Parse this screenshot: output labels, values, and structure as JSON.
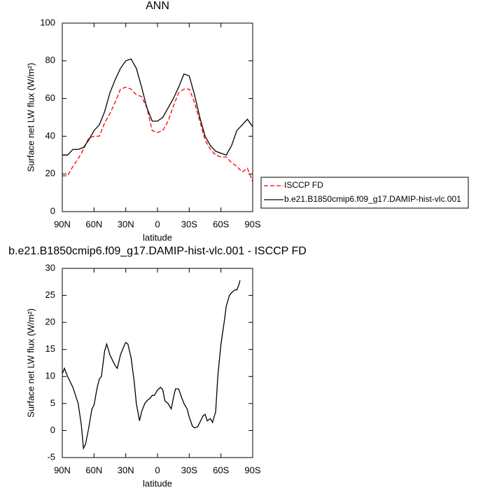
{
  "chart_data": [
    {
      "type": "line",
      "title": "ANN",
      "x_label": "latitude",
      "y_label": "Surface net LW flux (W/m²)",
      "xlim": [
        90,
        -90
      ],
      "xticks": [
        {
          "value": 90,
          "label": "90N"
        },
        {
          "value": 60,
          "label": "60N"
        },
        {
          "value": 30,
          "label": "30N"
        },
        0,
        {
          "value": -30,
          "label": "30S"
        },
        {
          "value": -60,
          "label": "60S"
        },
        {
          "value": -90,
          "label": "90S"
        }
      ],
      "ylim": [
        0,
        100
      ],
      "yticks": [
        0,
        20,
        40,
        60,
        80,
        100
      ],
      "x": [
        90,
        85,
        80,
        75,
        70,
        65,
        60,
        55,
        50,
        45,
        40,
        35,
        30,
        25,
        20,
        15,
        10,
        5,
        0,
        -5,
        -10,
        -15,
        -20,
        -25,
        -30,
        -35,
        -40,
        -45,
        -50,
        -55,
        -60,
        -65,
        -70,
        -75,
        -80,
        -85,
        -90
      ],
      "series": [
        {
          "name": "ISCCP FD",
          "color": "#ff0000",
          "line_style": "dashed",
          "values": [
            19,
            19,
            24,
            28,
            33,
            39,
            40,
            40,
            47,
            52,
            58,
            65,
            66,
            65,
            62,
            61,
            55,
            43,
            42,
            43,
            48,
            56,
            63,
            65,
            65,
            58,
            48,
            38,
            33,
            30,
            29,
            29,
            26,
            24,
            21,
            23,
            16
          ]
        },
        {
          "name": "b.e21.B1850cmip6.f09_g17.DAMIP-hist-vlc.001",
          "color": "#000000",
          "line_style": "solid",
          "values": [
            30,
            30,
            33,
            33,
            34,
            38,
            43,
            46,
            53,
            63,
            70,
            76,
            80,
            81,
            76,
            66,
            55,
            48,
            48,
            50,
            55,
            60,
            66,
            73,
            72,
            62,
            50,
            40,
            35,
            32,
            31,
            30,
            35,
            43,
            46,
            49,
            45
          ]
        }
      ]
    },
    {
      "type": "line",
      "title": "b.e21.B1850cmip6.f09_g17.DAMIP-hist-vlc.001 - ISCCP FD",
      "x_label": "latitude",
      "y_label": "Surface net LW flux (W/m²)",
      "xlim": [
        90,
        -90
      ],
      "xticks": [
        {
          "value": 90,
          "label": "90N"
        },
        {
          "value": 60,
          "label": "60N"
        },
        {
          "value": 30,
          "label": "30N"
        },
        0,
        {
          "value": -30,
          "label": "30S"
        },
        {
          "value": -60,
          "label": "60S"
        },
        {
          "value": -90,
          "label": "90S"
        }
      ],
      "ylim": [
        -5,
        30
      ],
      "yticks": [
        -5,
        0,
        5,
        10,
        15,
        20,
        25,
        30
      ],
      "x": [
        90,
        88,
        85,
        80,
        75,
        72,
        70,
        68,
        65,
        62,
        60,
        57,
        55,
        53,
        50,
        48,
        45,
        40,
        38,
        35,
        32,
        30,
        28,
        25,
        22,
        20,
        17,
        15,
        12,
        10,
        7,
        5,
        3,
        0,
        -3,
        -5,
        -7,
        -10,
        -13,
        -15,
        -17,
        -20,
        -23,
        -25,
        -28,
        -30,
        -33,
        -35,
        -38,
        -40,
        -43,
        -45,
        -47,
        -50,
        -52,
        -55,
        -57,
        -60,
        -63,
        -65,
        -68,
        -70,
        -73,
        -75,
        -77,
        -78
      ],
      "series": [
        {
          "color": "#000000",
          "line_style": "solid",
          "values": [
            10.5,
            11.5,
            10,
            8,
            5,
            1,
            -3.3,
            -2.5,
            0.5,
            4,
            4.7,
            8,
            9.5,
            10,
            14.7,
            16,
            14,
            12,
            11.5,
            14,
            15.5,
            16.3,
            16,
            13.5,
            9,
            5,
            1.8,
            3.5,
            5,
            5.5,
            6,
            6.5,
            6.5,
            7.5,
            8,
            7.5,
            5.5,
            5,
            4,
            6,
            7.7,
            7.7,
            6,
            5,
            4,
            2.5,
            0.8,
            0.5,
            0.7,
            1.5,
            2.7,
            3,
            1.8,
            2.2,
            1.5,
            3.5,
            10,
            16,
            20,
            23,
            25,
            25.5,
            26,
            26,
            27,
            27.8
          ]
        }
      ]
    }
  ]
}
